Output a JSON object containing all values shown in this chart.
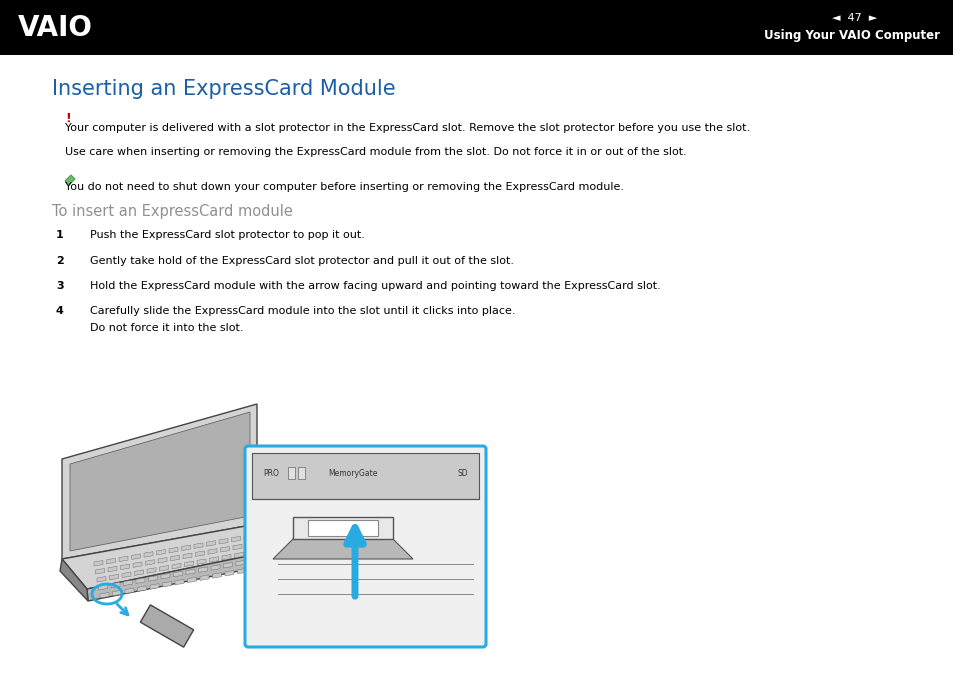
{
  "bg_color": "#ffffff",
  "header_bg": "#000000",
  "header_text_right": "Using Your VAIO Computer",
  "header_page_num": "47",
  "header_text_color": "#ffffff",
  "title": "Inserting an ExpressCard Module",
  "title_color": "#1a5fa8",
  "title_fontsize": 15,
  "exclamation_color": "#cc0000",
  "warning_text1": "Your computer is delivered with a slot protector in the ExpressCard slot. Remove the slot protector before you use the slot.",
  "warning_text2": "Use care when inserting or removing the ExpressCard module from the slot. Do not force it in or out of the slot.",
  "note_text": "You do not need to shut down your computer before inserting or removing the ExpressCard module.",
  "body_text_color": "#000000",
  "body_fontsize": 8.0,
  "subtitle_text": "To insert an ExpressCard module",
  "subtitle_color": "#909090",
  "subtitle_fontsize": 10.5,
  "step1": "Push the ExpressCard slot protector to pop it out.",
  "step2": "Gently take hold of the ExpressCard slot protector and pull it out of the slot.",
  "step3": "Hold the ExpressCard module with the arrow facing upward and pointing toward the ExpressCard slot.",
  "step4a": "Carefully slide the ExpressCard module into the slot until it clicks into place.",
  "step4b": "Do not force it into the slot.",
  "cyan_color": "#29abe2",
  "laptop_gray_light": "#d4d4d4",
  "laptop_gray_mid": "#b8b8b8",
  "laptop_gray_dark": "#888888",
  "laptop_edge": "#444444"
}
